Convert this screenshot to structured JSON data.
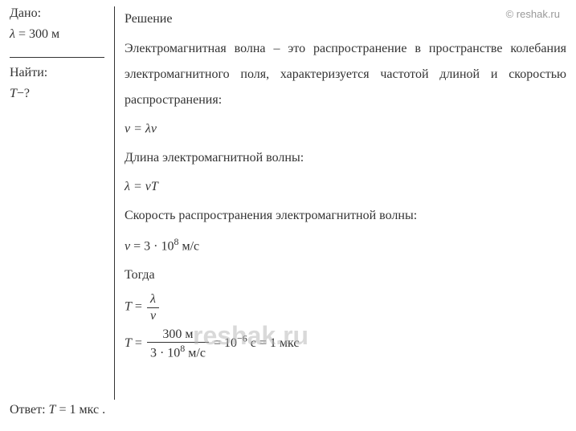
{
  "watermark": {
    "top": "© reshak.ru",
    "center": "reshak.ru"
  },
  "given": {
    "label": "Дано:",
    "line1_var": "λ",
    "line1_eq": " = 300 м"
  },
  "find": {
    "label": "Найти:",
    "var": "T",
    "suffix": "−?"
  },
  "solution": {
    "title": "Решение",
    "paragraph": "Электромагнитная волна – это распространение в пространстве колебания электромагнитного поля, характеризуется частотой длиной и скоростью распространения:",
    "formula1_lhs": "v",
    "formula1_rhs": " =  λν",
    "line2": "Длина электромагнитной волны:",
    "formula2_lhs": "λ",
    "formula2_rhs": " = vT",
    "line3": "Скорость распространения электромагнитной волны:",
    "formula3_lhs": "v",
    "formula3_val": " = 3 · 10",
    "formula3_exp": "8",
    "formula3_unit": " м/с",
    "line4": "Тогда",
    "formula4_lhs": "T",
    "formula4_eq": " = ",
    "formula4_num": "λ",
    "formula4_den": "v",
    "formula5_lhs": "T",
    "formula5_eq": " = ",
    "formula5_num": "300 м",
    "formula5_den_a": "3 · 10",
    "formula5_den_exp": "8",
    "formula5_den_b": " м/с",
    "formula5_mid": " = 10",
    "formula5_exp2": "−6",
    "formula5_tail": " с = 1 мкс"
  },
  "answer": {
    "label": "Ответ: ",
    "var": "T",
    "value": " = 1 мкс ."
  },
  "styles": {
    "text_color": "#333333",
    "background_color": "#ffffff",
    "border_color": "#333333",
    "watermark_color_light": "rgba(180,180,180,0.5)",
    "watermark_color_top": "#999999",
    "font_family": "Times New Roman",
    "base_fontsize": 16
  }
}
